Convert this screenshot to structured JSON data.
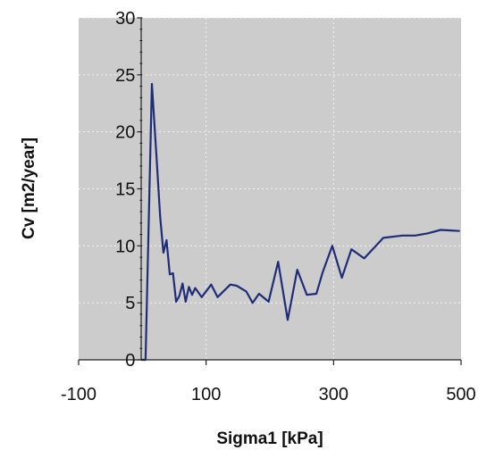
{
  "chart_data": {
    "type": "line",
    "title": "",
    "xlabel": "Sigma1 [kPa]",
    "ylabel": "Cv [m2/year]",
    "xlim": [
      -100,
      500
    ],
    "ylim": [
      0,
      30
    ],
    "x_ticks": [
      "-100",
      "100",
      "300",
      "500"
    ],
    "x_tick_values": [
      -100,
      100,
      300,
      500
    ],
    "y_ticks": [
      "0",
      "5",
      "10",
      "15",
      "20",
      "25",
      "30"
    ],
    "y_tick_values": [
      0,
      5,
      10,
      15,
      20,
      25,
      30
    ],
    "grid": true,
    "legend": "none",
    "series": [
      {
        "color": "#1f2d78",
        "x": [
          -2,
          -2,
          5,
          5,
          15,
          22,
          28,
          33,
          38,
          43,
          48,
          53,
          58,
          63,
          68,
          73,
          78,
          83,
          93,
          108,
          118,
          138,
          148,
          163,
          173,
          183,
          198,
          213,
          228,
          243,
          258,
          273,
          283,
          298,
          313,
          328,
          348,
          368,
          378,
          408,
          428,
          448,
          468,
          498
        ],
        "y": [
          0,
          0,
          0,
          0,
          24.2,
          18,
          12.5,
          9.4,
          10.5,
          7.5,
          7.6,
          5.1,
          5.6,
          6.7,
          5.1,
          6.4,
          5.7,
          6.3,
          5.5,
          6.6,
          5.5,
          6.6,
          6.5,
          6.0,
          5.0,
          5.8,
          5.1,
          8.6,
          3.5,
          7.9,
          5.7,
          5.8,
          7.7,
          10.0,
          7.2,
          9.7,
          8.9,
          10.1,
          10.7,
          10.9,
          10.9,
          11.1,
          11.4,
          11.3
        ]
      }
    ]
  }
}
